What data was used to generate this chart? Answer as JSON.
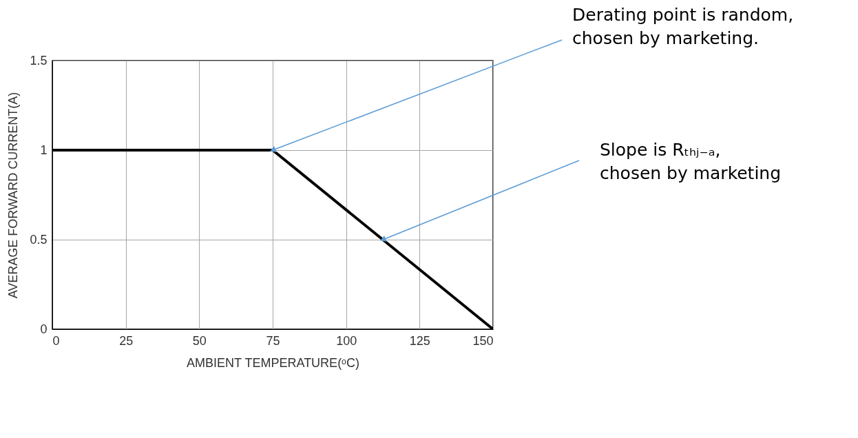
{
  "chart_data": {
    "type": "line",
    "xlabel": "AMBIENT TEMPERATURE(ᵒC)",
    "ylabel": "AVERAGE FORWARD CURRENT(A)",
    "x": [
      0,
      75,
      150
    ],
    "series": [
      {
        "color": "#000000",
        "values": [
          1,
          1,
          0
        ]
      }
    ],
    "xlim": [
      0,
      150
    ],
    "xticks": [
      0,
      25,
      50,
      75,
      100,
      125,
      150
    ],
    "ylim": [
      0,
      1.5
    ],
    "yticks": [
      0,
      0.5,
      1,
      1.5
    ],
    "grid": true,
    "annotations": [
      {
        "text": "Derating point is random,\nchosen by marketing.",
        "x": 75,
        "y": 1
      },
      {
        "text": "Slope is Rₜₕⱼ₋ₐ,\nchosen by marketing",
        "x": 112.5,
        "y": 0.5
      }
    ]
  }
}
